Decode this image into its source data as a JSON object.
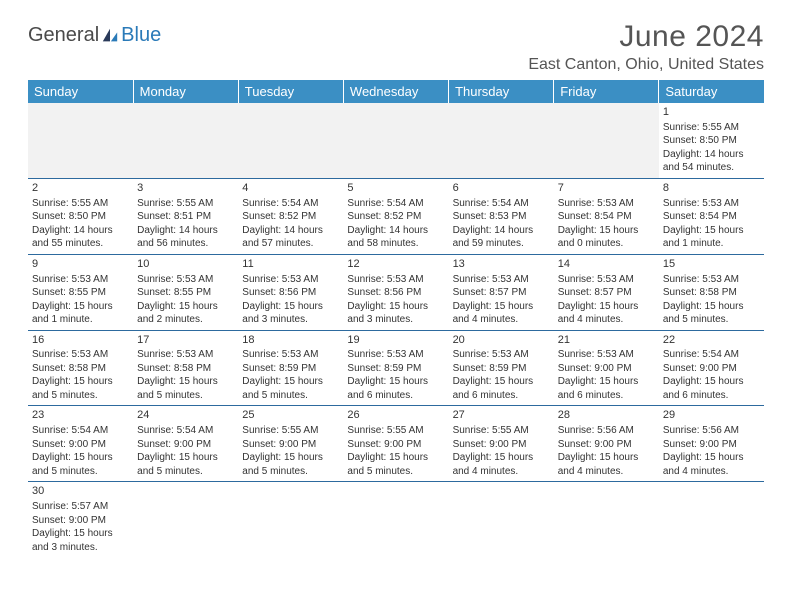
{
  "brand": {
    "part1": "General",
    "part2": "Blue"
  },
  "title": "June 2024",
  "location": "East Canton, Ohio, United States",
  "colors": {
    "header_bg": "#3b8fc4",
    "header_text": "#ffffff",
    "row_border": "#2d6a9e",
    "empty_bg": "#f2f2f2",
    "text": "#333333",
    "brand_gray": "#4a4a4a",
    "brand_blue": "#2a7ab8"
  },
  "weekdays": [
    "Sunday",
    "Monday",
    "Tuesday",
    "Wednesday",
    "Thursday",
    "Friday",
    "Saturday"
  ],
  "weeks": [
    [
      null,
      null,
      null,
      null,
      null,
      null,
      {
        "n": "1",
        "sr": "Sunrise: 5:55 AM",
        "ss": "Sunset: 8:50 PM",
        "d1": "Daylight: 14 hours",
        "d2": "and 54 minutes."
      }
    ],
    [
      {
        "n": "2",
        "sr": "Sunrise: 5:55 AM",
        "ss": "Sunset: 8:50 PM",
        "d1": "Daylight: 14 hours",
        "d2": "and 55 minutes."
      },
      {
        "n": "3",
        "sr": "Sunrise: 5:55 AM",
        "ss": "Sunset: 8:51 PM",
        "d1": "Daylight: 14 hours",
        "d2": "and 56 minutes."
      },
      {
        "n": "4",
        "sr": "Sunrise: 5:54 AM",
        "ss": "Sunset: 8:52 PM",
        "d1": "Daylight: 14 hours",
        "d2": "and 57 minutes."
      },
      {
        "n": "5",
        "sr": "Sunrise: 5:54 AM",
        "ss": "Sunset: 8:52 PM",
        "d1": "Daylight: 14 hours",
        "d2": "and 58 minutes."
      },
      {
        "n": "6",
        "sr": "Sunrise: 5:54 AM",
        "ss": "Sunset: 8:53 PM",
        "d1": "Daylight: 14 hours",
        "d2": "and 59 minutes."
      },
      {
        "n": "7",
        "sr": "Sunrise: 5:53 AM",
        "ss": "Sunset: 8:54 PM",
        "d1": "Daylight: 15 hours",
        "d2": "and 0 minutes."
      },
      {
        "n": "8",
        "sr": "Sunrise: 5:53 AM",
        "ss": "Sunset: 8:54 PM",
        "d1": "Daylight: 15 hours",
        "d2": "and 1 minute."
      }
    ],
    [
      {
        "n": "9",
        "sr": "Sunrise: 5:53 AM",
        "ss": "Sunset: 8:55 PM",
        "d1": "Daylight: 15 hours",
        "d2": "and 1 minute."
      },
      {
        "n": "10",
        "sr": "Sunrise: 5:53 AM",
        "ss": "Sunset: 8:55 PM",
        "d1": "Daylight: 15 hours",
        "d2": "and 2 minutes."
      },
      {
        "n": "11",
        "sr": "Sunrise: 5:53 AM",
        "ss": "Sunset: 8:56 PM",
        "d1": "Daylight: 15 hours",
        "d2": "and 3 minutes."
      },
      {
        "n": "12",
        "sr": "Sunrise: 5:53 AM",
        "ss": "Sunset: 8:56 PM",
        "d1": "Daylight: 15 hours",
        "d2": "and 3 minutes."
      },
      {
        "n": "13",
        "sr": "Sunrise: 5:53 AM",
        "ss": "Sunset: 8:57 PM",
        "d1": "Daylight: 15 hours",
        "d2": "and 4 minutes."
      },
      {
        "n": "14",
        "sr": "Sunrise: 5:53 AM",
        "ss": "Sunset: 8:57 PM",
        "d1": "Daylight: 15 hours",
        "d2": "and 4 minutes."
      },
      {
        "n": "15",
        "sr": "Sunrise: 5:53 AM",
        "ss": "Sunset: 8:58 PM",
        "d1": "Daylight: 15 hours",
        "d2": "and 5 minutes."
      }
    ],
    [
      {
        "n": "16",
        "sr": "Sunrise: 5:53 AM",
        "ss": "Sunset: 8:58 PM",
        "d1": "Daylight: 15 hours",
        "d2": "and 5 minutes."
      },
      {
        "n": "17",
        "sr": "Sunrise: 5:53 AM",
        "ss": "Sunset: 8:58 PM",
        "d1": "Daylight: 15 hours",
        "d2": "and 5 minutes."
      },
      {
        "n": "18",
        "sr": "Sunrise: 5:53 AM",
        "ss": "Sunset: 8:59 PM",
        "d1": "Daylight: 15 hours",
        "d2": "and 5 minutes."
      },
      {
        "n": "19",
        "sr": "Sunrise: 5:53 AM",
        "ss": "Sunset: 8:59 PM",
        "d1": "Daylight: 15 hours",
        "d2": "and 6 minutes."
      },
      {
        "n": "20",
        "sr": "Sunrise: 5:53 AM",
        "ss": "Sunset: 8:59 PM",
        "d1": "Daylight: 15 hours",
        "d2": "and 6 minutes."
      },
      {
        "n": "21",
        "sr": "Sunrise: 5:53 AM",
        "ss": "Sunset: 9:00 PM",
        "d1": "Daylight: 15 hours",
        "d2": "and 6 minutes."
      },
      {
        "n": "22",
        "sr": "Sunrise: 5:54 AM",
        "ss": "Sunset: 9:00 PM",
        "d1": "Daylight: 15 hours",
        "d2": "and 6 minutes."
      }
    ],
    [
      {
        "n": "23",
        "sr": "Sunrise: 5:54 AM",
        "ss": "Sunset: 9:00 PM",
        "d1": "Daylight: 15 hours",
        "d2": "and 5 minutes."
      },
      {
        "n": "24",
        "sr": "Sunrise: 5:54 AM",
        "ss": "Sunset: 9:00 PM",
        "d1": "Daylight: 15 hours",
        "d2": "and 5 minutes."
      },
      {
        "n": "25",
        "sr": "Sunrise: 5:55 AM",
        "ss": "Sunset: 9:00 PM",
        "d1": "Daylight: 15 hours",
        "d2": "and 5 minutes."
      },
      {
        "n": "26",
        "sr": "Sunrise: 5:55 AM",
        "ss": "Sunset: 9:00 PM",
        "d1": "Daylight: 15 hours",
        "d2": "and 5 minutes."
      },
      {
        "n": "27",
        "sr": "Sunrise: 5:55 AM",
        "ss": "Sunset: 9:00 PM",
        "d1": "Daylight: 15 hours",
        "d2": "and 4 minutes."
      },
      {
        "n": "28",
        "sr": "Sunrise: 5:56 AM",
        "ss": "Sunset: 9:00 PM",
        "d1": "Daylight: 15 hours",
        "d2": "and 4 minutes."
      },
      {
        "n": "29",
        "sr": "Sunrise: 5:56 AM",
        "ss": "Sunset: 9:00 PM",
        "d1": "Daylight: 15 hours",
        "d2": "and 4 minutes."
      }
    ],
    [
      {
        "n": "30",
        "sr": "Sunrise: 5:57 AM",
        "ss": "Sunset: 9:00 PM",
        "d1": "Daylight: 15 hours",
        "d2": "and 3 minutes."
      },
      null,
      null,
      null,
      null,
      null,
      null
    ]
  ]
}
